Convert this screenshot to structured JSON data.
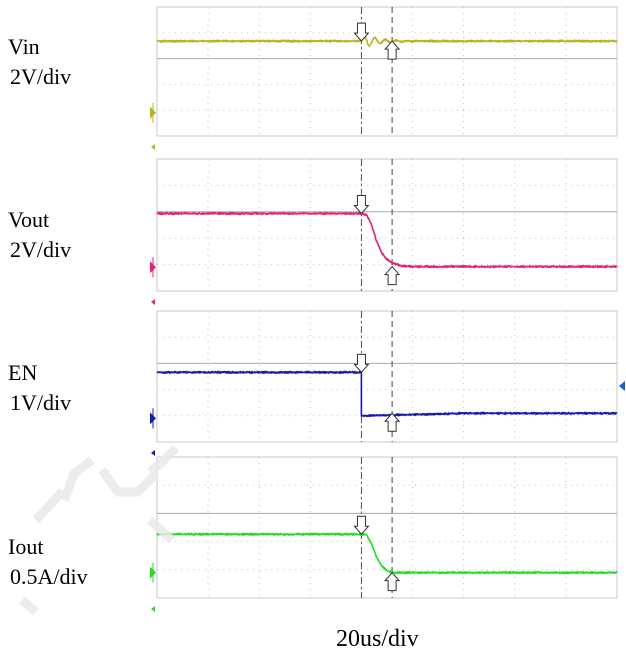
{
  "labels": {
    "ch1": {
      "name": "Vin",
      "scale": "2V/div"
    },
    "ch2": {
      "name": "Vout",
      "scale": "2V/div"
    },
    "ch3": {
      "name": "EN",
      "scale": "1V/div"
    },
    "ch4": {
      "name": "Iout",
      "scale": "0.5A/div"
    }
  },
  "timebase": "20us/div",
  "chart_data": {
    "type": "line",
    "title": "",
    "xlabel": "20us/div",
    "x_unit": "us",
    "grid": true,
    "x_range_us": [
      -80,
      100
    ],
    "x_divisions": 9,
    "trigger_time_us": 0,
    "cursor_time_us": 12,
    "series": [
      {
        "name": "Vin",
        "scale": "2V/div",
        "color": "#b5b51e",
        "divisions": 2.45,
        "ground_level": 0,
        "points": [
          [
            -80,
            5.6
          ],
          [
            0,
            5.6
          ],
          [
            100,
            5.6
          ]
        ],
        "ringing": {
          "start_us": 0,
          "end_us": 16,
          "peak_to_peak_v": 1.2
        }
      },
      {
        "name": "Vout",
        "scale": "2V/div",
        "color": "#e0227a",
        "divisions": 2.95,
        "ground_level": 0,
        "points": [
          [
            -80,
            4.2
          ],
          [
            0,
            4.2
          ],
          [
            2,
            4.1
          ],
          [
            4,
            3.3
          ],
          [
            6,
            2.0
          ],
          [
            8,
            1.1
          ],
          [
            10,
            0.6
          ],
          [
            12,
            0.35
          ],
          [
            16,
            0.1
          ],
          [
            20,
            0.05
          ],
          [
            100,
            0.05
          ]
        ]
      },
      {
        "name": "EN",
        "scale": "1V/div",
        "color": "#1a1aaa",
        "divisions": 2.9,
        "ground_level": 0,
        "points": [
          [
            -80,
            1.8
          ],
          [
            0,
            1.8
          ],
          [
            0,
            0.1
          ],
          [
            40,
            0.2
          ],
          [
            100,
            0.2
          ]
        ]
      },
      {
        "name": "Iout",
        "scale": "0.5A/div",
        "color": "#22dd22",
        "divisions": 2.95,
        "ground_level": 0,
        "points": [
          [
            -80,
            0.75
          ],
          [
            0,
            0.75
          ],
          [
            2,
            0.74
          ],
          [
            4,
            0.55
          ],
          [
            6,
            0.3
          ],
          [
            8,
            0.12
          ],
          [
            10,
            0.04
          ],
          [
            12,
            0.0
          ],
          [
            100,
            0.0
          ]
        ]
      }
    ]
  }
}
